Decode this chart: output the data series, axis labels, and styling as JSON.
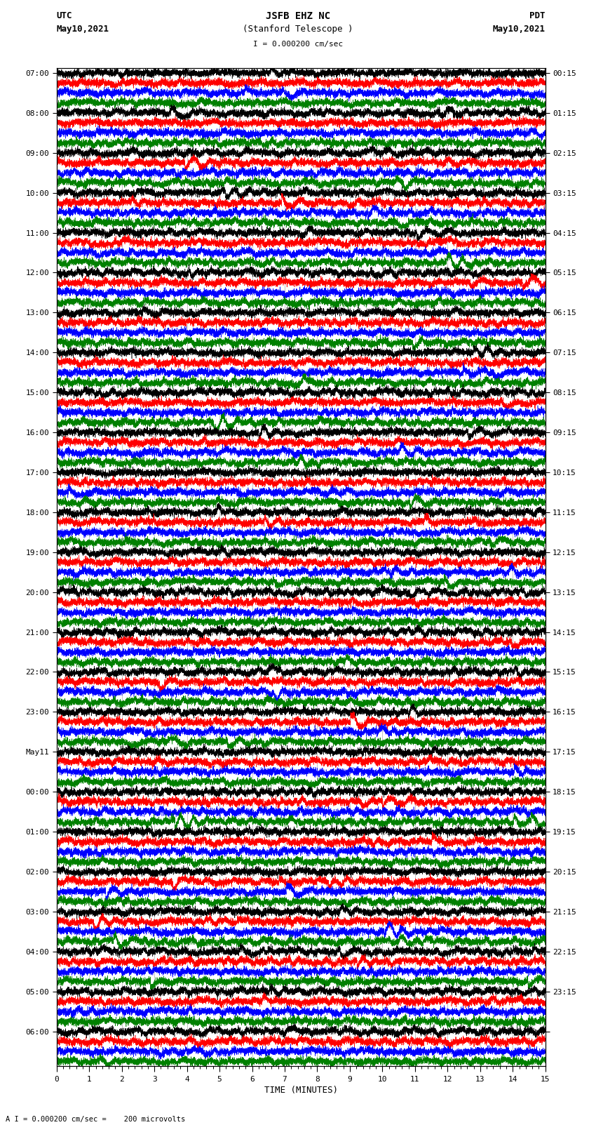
{
  "title_line1": "JSFB EHZ NC",
  "title_line2": "(Stanford Telescope )",
  "scale_label": "I = 0.000200 cm/sec",
  "bottom_label": "A I = 0.000200 cm/sec =    200 microvolts",
  "xlabel": "TIME (MINUTES)",
  "left_header": "UTC",
  "left_date": "May10,2021",
  "right_header": "PDT",
  "right_date": "May10,2021",
  "left_times": [
    "07:00",
    "08:00",
    "09:00",
    "10:00",
    "11:00",
    "12:00",
    "13:00",
    "14:00",
    "15:00",
    "16:00",
    "17:00",
    "18:00",
    "19:00",
    "20:00",
    "21:00",
    "22:00",
    "23:00",
    "May11",
    "00:00",
    "01:00",
    "02:00",
    "03:00",
    "04:00",
    "05:00",
    "06:00"
  ],
  "right_times": [
    "00:15",
    "01:15",
    "02:15",
    "03:15",
    "04:15",
    "05:15",
    "06:15",
    "07:15",
    "08:15",
    "09:15",
    "10:15",
    "11:15",
    "12:15",
    "13:15",
    "14:15",
    "15:15",
    "16:15",
    "17:15",
    "18:15",
    "19:15",
    "20:15",
    "21:15",
    "22:15",
    "23:15",
    ""
  ],
  "trace_colors": [
    "black",
    "red",
    "blue",
    "green"
  ],
  "n_groups": 25,
  "traces_per_group": 4,
  "x_min": 0,
  "x_max": 15,
  "x_ticks": [
    0,
    1,
    2,
    3,
    4,
    5,
    6,
    7,
    8,
    9,
    10,
    11,
    12,
    13,
    14,
    15
  ],
  "bg_color": "white",
  "fig_width": 8.5,
  "fig_height": 16.13,
  "dpi": 100,
  "seed": 12345
}
